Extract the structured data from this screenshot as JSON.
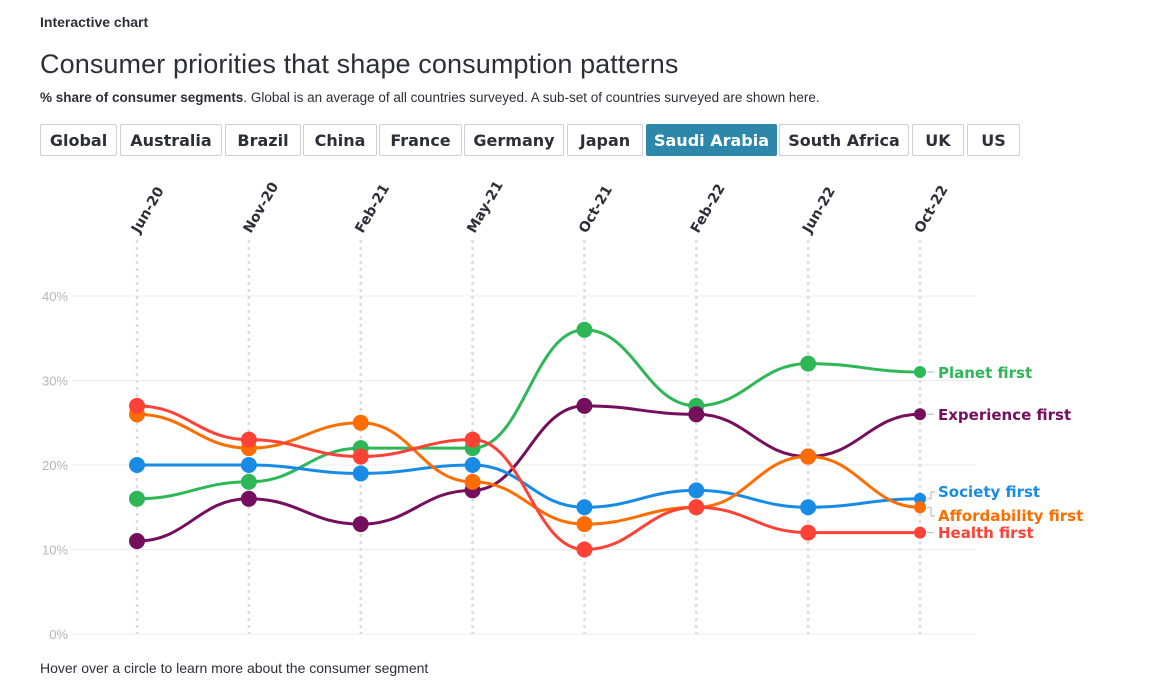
{
  "header": {
    "kicker": "Interactive chart",
    "title": "Consumer priorities that shape consumption patterns",
    "subtitle_bold": "% share of consumer segments",
    "subtitle_rest": ". Global is an average of all countries surveyed. A sub-set of countries surveyed are shown here."
  },
  "tabs": [
    {
      "label": "Global"
    },
    {
      "label": "Australia"
    },
    {
      "label": "Brazil"
    },
    {
      "label": "China"
    },
    {
      "label": "France"
    },
    {
      "label": "Germany"
    },
    {
      "label": "Japan"
    },
    {
      "label": "Saudi Arabia",
      "active": true
    },
    {
      "label": "South Africa"
    },
    {
      "label": "UK"
    },
    {
      "label": "US"
    }
  ],
  "footnote": "Hover over a circle to learn more about the consumer segment",
  "chart_data": {
    "type": "line",
    "title": "Consumer priorities that shape consumption patterns",
    "xlabel": "",
    "ylabel": "% share of consumer segments",
    "x": [
      "Jun-20",
      "Nov-20",
      "Feb-21",
      "May-21",
      "Oct-21",
      "Feb-22",
      "Jun-22",
      "Oct-22"
    ],
    "ylim": [
      0,
      40
    ],
    "yticks": [
      0,
      10,
      20,
      30,
      40
    ],
    "ytick_labels": [
      "0%",
      "10%",
      "20%",
      "30%",
      "40%"
    ],
    "grid": true,
    "legend": "right-end labels",
    "series": [
      {
        "name": "Planet first",
        "color": "#2db757",
        "values": [
          16,
          18,
          22,
          22,
          36,
          27,
          32,
          31
        ]
      },
      {
        "name": "Experience first",
        "color": "#750e5c",
        "values": [
          11,
          16,
          13,
          17,
          27,
          26,
          21,
          26
        ]
      },
      {
        "name": "Society first",
        "color": "#188ce5",
        "values": [
          20,
          20,
          19,
          20,
          15,
          17,
          15,
          16
        ]
      },
      {
        "name": "Affordability first",
        "color": "#ff6d00",
        "values": [
          26,
          22,
          25,
          18,
          13,
          15,
          21,
          15
        ]
      },
      {
        "name": "Health first",
        "color": "#ff4136",
        "values": [
          27,
          23,
          21,
          23,
          10,
          15,
          12,
          12
        ]
      }
    ]
  }
}
